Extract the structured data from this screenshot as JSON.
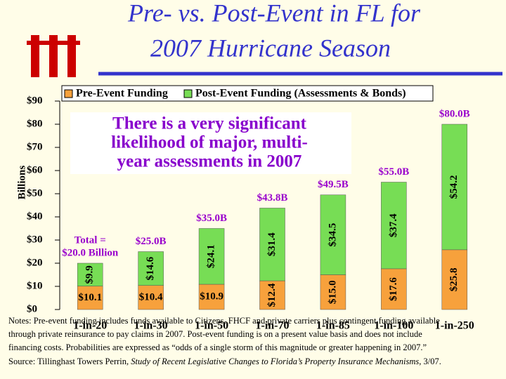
{
  "chart_data": {
    "type": "stacked_bar",
    "title": [
      "Pre- vs. Post-Event in FL for",
      "2007 Hurricane Season"
    ],
    "y_label": "Billions",
    "categories": [
      "1-in-20",
      "1-in-30",
      "1-in-50",
      "1-in-70",
      "1-in-85",
      "1-in-100",
      "1-in-250"
    ],
    "series": [
      {
        "name": "Pre-Event Funding",
        "color": "#f7a13c",
        "values": [
          10.1,
          10.4,
          10.9,
          12.4,
          15.0,
          17.6,
          25.8
        ],
        "value_labels": [
          "$10.1",
          "$10.4",
          "$10.9",
          "$12.4",
          "$15.0",
          "$17.6",
          "$25.8"
        ]
      },
      {
        "name": "Post-Event Funding (Assessments & Bonds)",
        "color": "#77dd55",
        "values": [
          9.9,
          14.6,
          24.1,
          31.4,
          34.5,
          37.4,
          54.2
        ],
        "value_labels": [
          "$9.9",
          "$14.6",
          "$24.1",
          "$31.4",
          "$34.5",
          "$37.4",
          "$54.2"
        ]
      }
    ],
    "total_labels": [
      [
        "Total =",
        "$20.0 Billion"
      ],
      [
        "$25.0B"
      ],
      [
        "$35.0B"
      ],
      [
        "$43.8B"
      ],
      [
        "$49.5B"
      ],
      [
        "$55.0B"
      ],
      [
        "$80.0B"
      ]
    ],
    "callout": [
      "There is a very significant",
      "likelihood of major, multi-",
      "year assessments in 2007"
    ],
    "ylim": [
      0,
      90
    ],
    "yticks": [
      {
        "value": 0,
        "label": "$0"
      },
      {
        "value": 10,
        "label": "$10"
      },
      {
        "value": 20,
        "label": "$20"
      },
      {
        "value": 30,
        "label": "$30"
      },
      {
        "value": 40,
        "label": "$40"
      },
      {
        "value": 50,
        "label": "$50"
      },
      {
        "value": 60,
        "label": "$60"
      },
      {
        "value": 70,
        "label": "$70"
      },
      {
        "value": 80,
        "label": "$80"
      },
      {
        "value": 90,
        "label": "$90"
      }
    ],
    "notes": [
      "Notes: Pre-event funding includes funds available to Citizens, FHCF and private carriers plus contingent funding available",
      " through private reinsurance to pay claims in 2007. Post-event funding is on a present value basis and does not include",
      "financing costs. Probabilities are expressed as “odds of a single storm of this magnitude or greater happening in 2007.”"
    ],
    "source": [
      "Source: Tillinghast Towers Perrin, ",
      "Study of Recent Legislative Changes to Florida’s Property Insurance Mechanisms",
      ", 3/07."
    ]
  }
}
